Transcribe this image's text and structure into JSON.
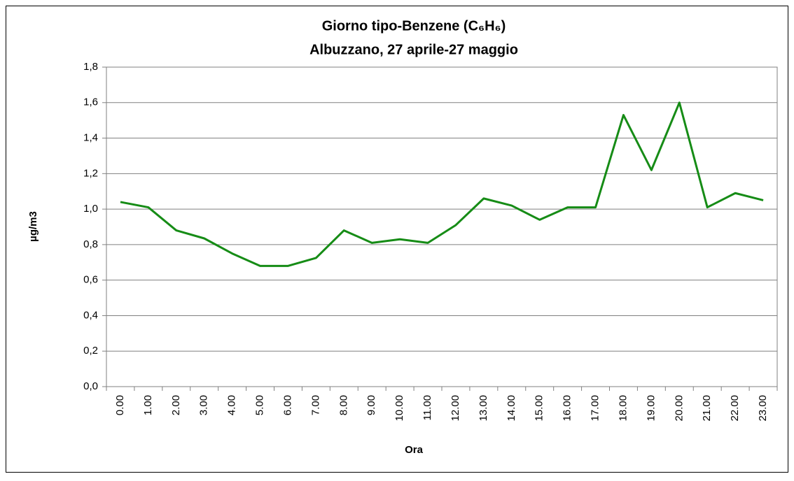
{
  "chart_data": {
    "type": "line",
    "title": [
      "Giorno tipo-Benzene (C₆H₆)",
      "Albuzzano, 27 aprile-27 maggio"
    ],
    "xlabel": "Ora",
    "ylabel": "µg/m3",
    "categories": [
      "0.00",
      "1.00",
      "2.00",
      "3.00",
      "4.00",
      "5.00",
      "6.00",
      "7.00",
      "8.00",
      "9.00",
      "10.00",
      "11.00",
      "12.00",
      "13.00",
      "14.00",
      "15.00",
      "16.00",
      "17.00",
      "18.00",
      "19.00",
      "20.00",
      "21.00",
      "22.00",
      "23.00"
    ],
    "series": [
      {
        "name": "Benzene",
        "color": "#168c16",
        "values": [
          1.04,
          1.01,
          0.88,
          0.835,
          0.75,
          0.68,
          0.68,
          0.725,
          0.88,
          0.81,
          0.83,
          0.81,
          0.91,
          1.06,
          1.02,
          0.94,
          1.01,
          1.01,
          1.53,
          1.22,
          1.6,
          1.01,
          1.09,
          1.05
        ]
      }
    ],
    "ylim": [
      0,
      1.8
    ],
    "yticks": [
      {
        "value": 0,
        "label": "0,0"
      },
      {
        "value": 0.2,
        "label": "0,2"
      },
      {
        "value": 0.4,
        "label": "0,4"
      },
      {
        "value": 0.6,
        "label": "0,6"
      },
      {
        "value": 0.8,
        "label": "0,8"
      },
      {
        "value": 1,
        "label": "1,0"
      },
      {
        "value": 1.2,
        "label": "1,2"
      },
      {
        "value": 1.4,
        "label": "1,4"
      },
      {
        "value": 1.6,
        "label": "1,6"
      },
      {
        "value": 1.8,
        "label": "1,8"
      }
    ],
    "grid": true
  }
}
